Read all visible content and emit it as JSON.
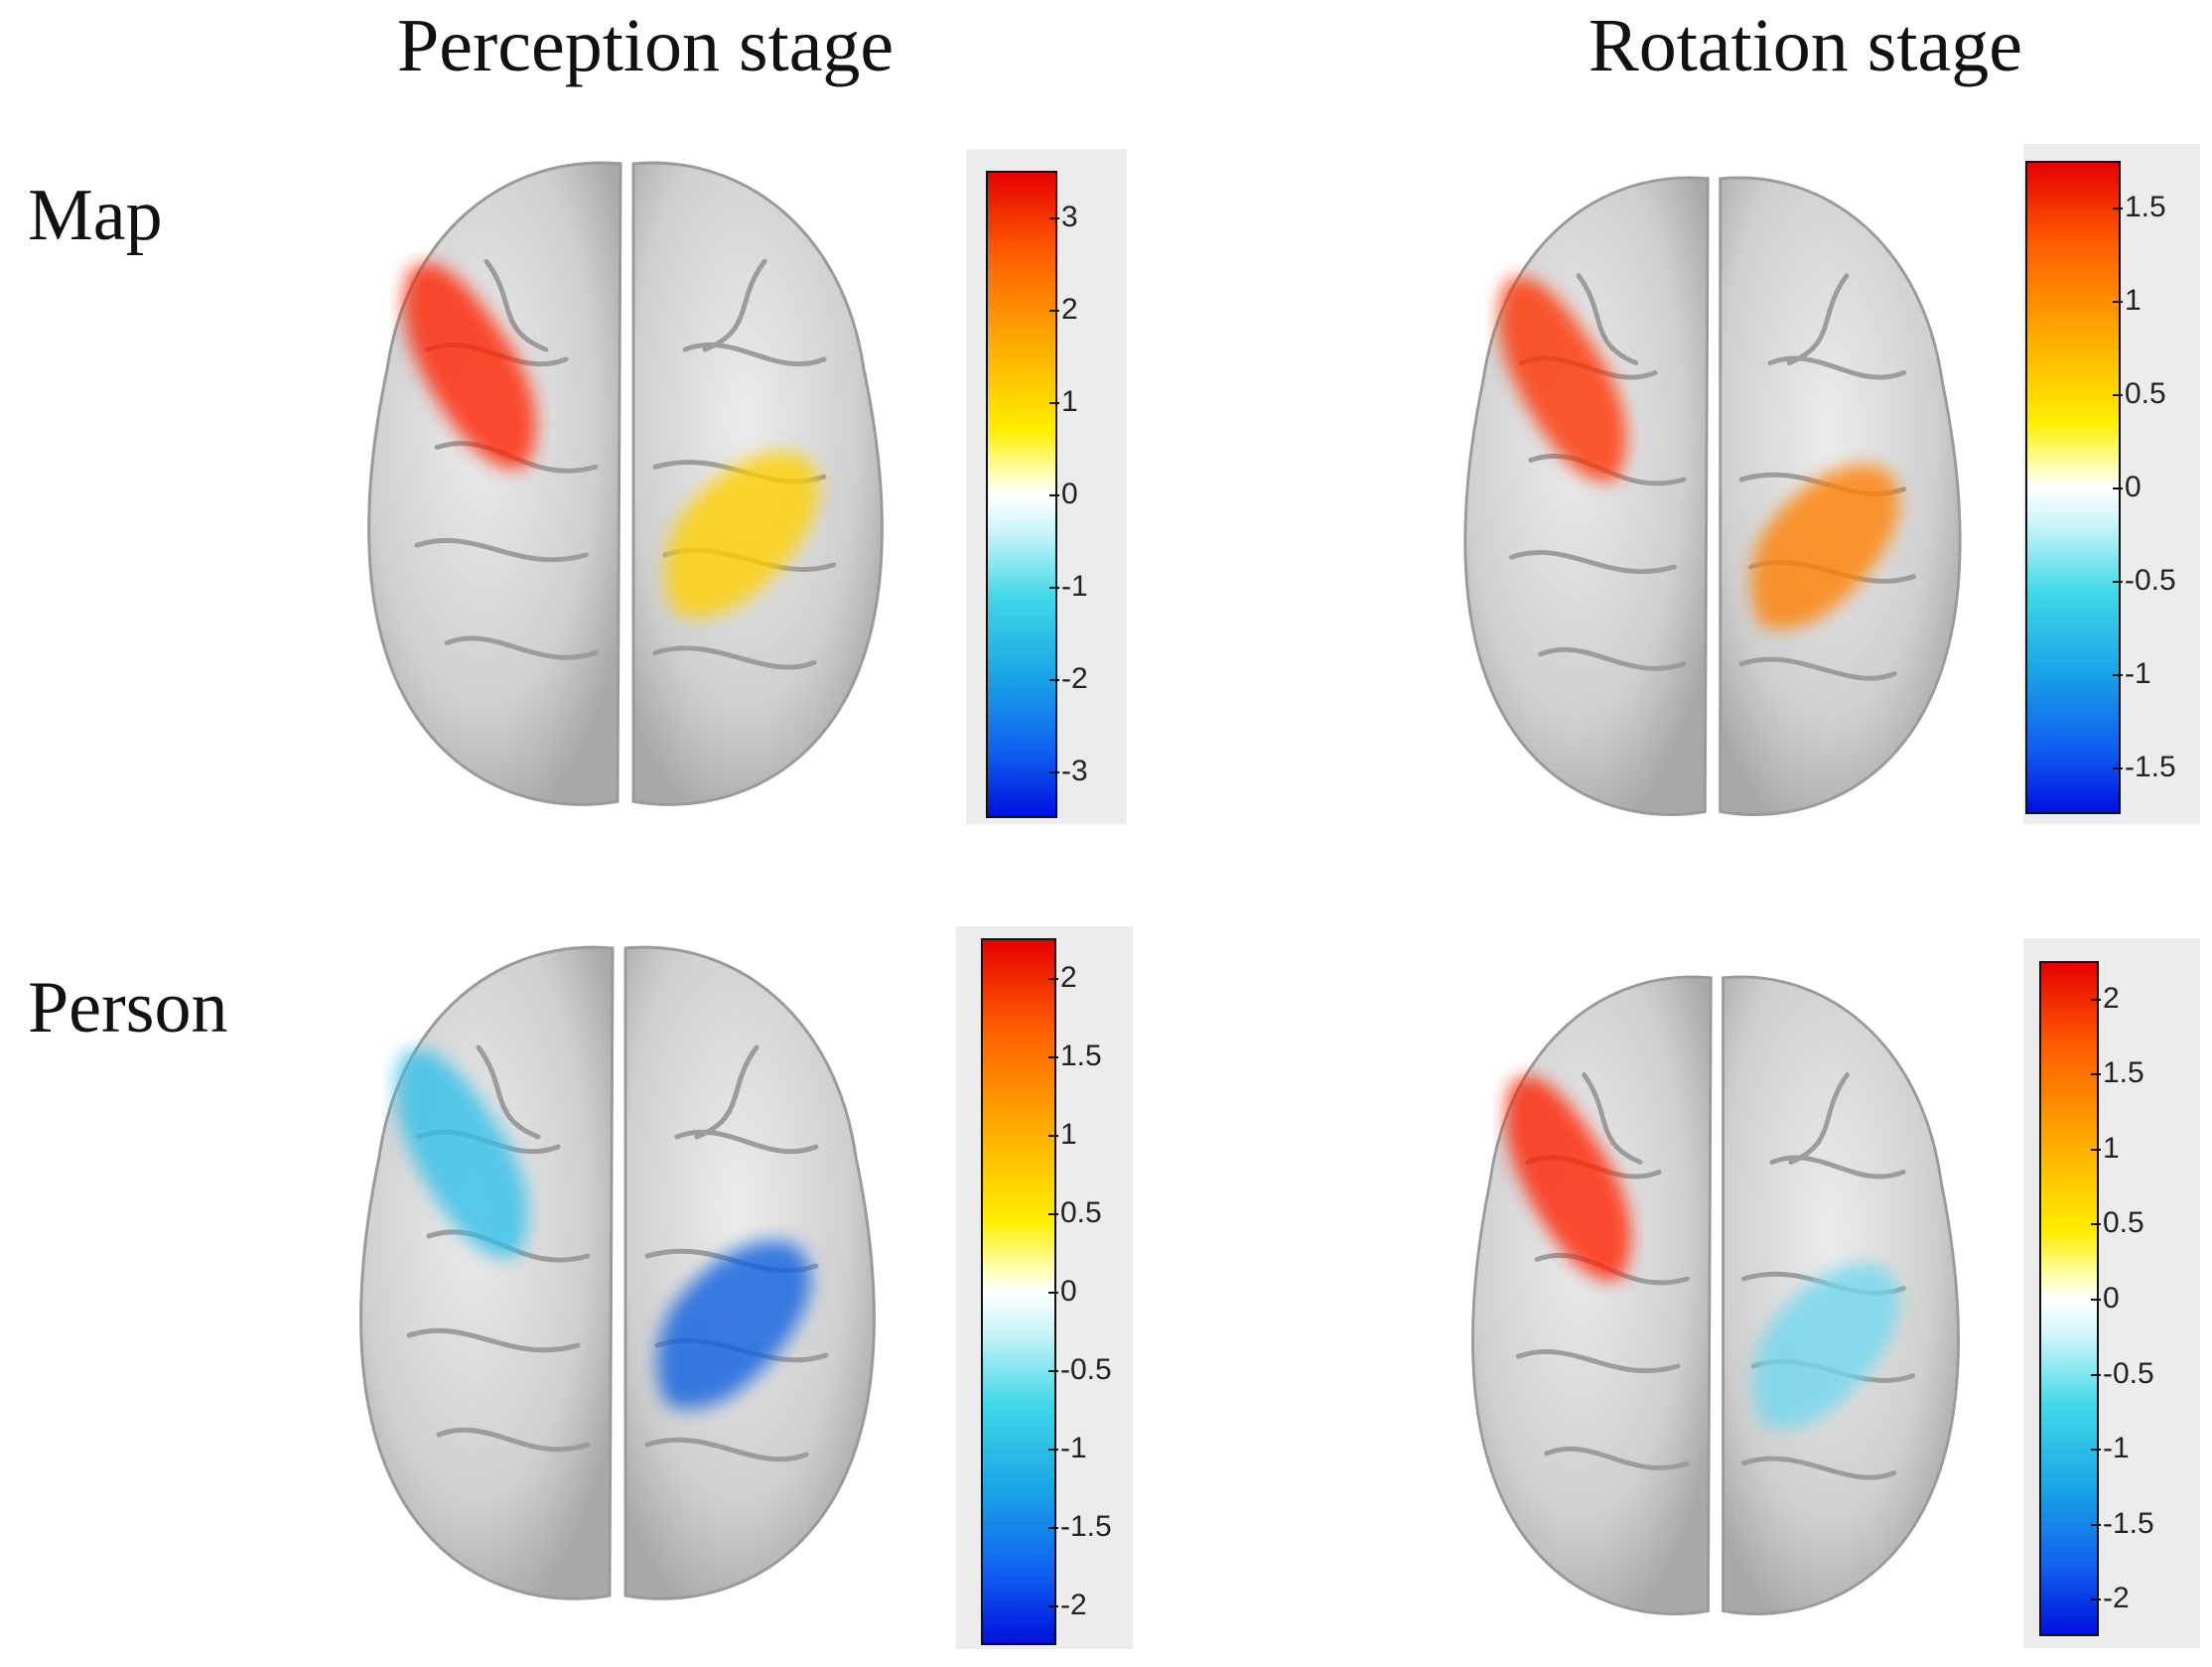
{
  "figure": {
    "columns": [
      "Perception stage",
      "Rotation stage"
    ],
    "rows": [
      "Map",
      "Person"
    ]
  },
  "panels": [
    {
      "condition": "Map",
      "stage": "Perception stage",
      "colorbar_ticks": [
        "3",
        "2",
        "1",
        "0",
        "-1",
        "-2",
        "-3"
      ],
      "activation": [
        {
          "region": "left-frontal",
          "tone": "yellow-orange",
          "peak_color": "#ff2000"
        },
        {
          "region": "right-central",
          "tone": "yellow",
          "peak_color": "#ffd000"
        }
      ]
    },
    {
      "condition": "Map",
      "stage": "Rotation stage",
      "colorbar_ticks": [
        "1.5",
        "1",
        "0.5",
        "0",
        "-0.5",
        "-1",
        "-1.5"
      ],
      "activation": [
        {
          "region": "left-frontal",
          "tone": "orange-red",
          "peak_color": "#ff3000"
        },
        {
          "region": "right-central",
          "tone": "orange",
          "peak_color": "#ff8000"
        }
      ]
    },
    {
      "condition": "Person",
      "stage": "Perception stage",
      "colorbar_ticks": [
        "2",
        "1.5",
        "1",
        "0.5",
        "0",
        "-0.5",
        "-1",
        "-1.5",
        "-2"
      ],
      "activation": [
        {
          "region": "left-frontal",
          "tone": "cyan-yellow",
          "peak_color": "#30c0e8"
        },
        {
          "region": "right-central",
          "tone": "blue-yellow",
          "peak_color": "#1060e0"
        }
      ]
    },
    {
      "condition": "Person",
      "stage": "Rotation stage",
      "colorbar_ticks": [
        "2",
        "1.5",
        "1",
        "0.5",
        "0",
        "-0.5",
        "-1",
        "-1.5",
        "-2"
      ],
      "activation": [
        {
          "region": "left-frontal",
          "tone": "yellow-red",
          "peak_color": "#ff2000"
        },
        {
          "region": "right-central",
          "tone": "cyan-pale",
          "peak_color": "#70d8ee"
        }
      ]
    }
  ],
  "colors": {
    "brain": "#cfcfcf",
    "brain_edge": "#9a9a9a",
    "colorbar_bg": "#ececec"
  }
}
